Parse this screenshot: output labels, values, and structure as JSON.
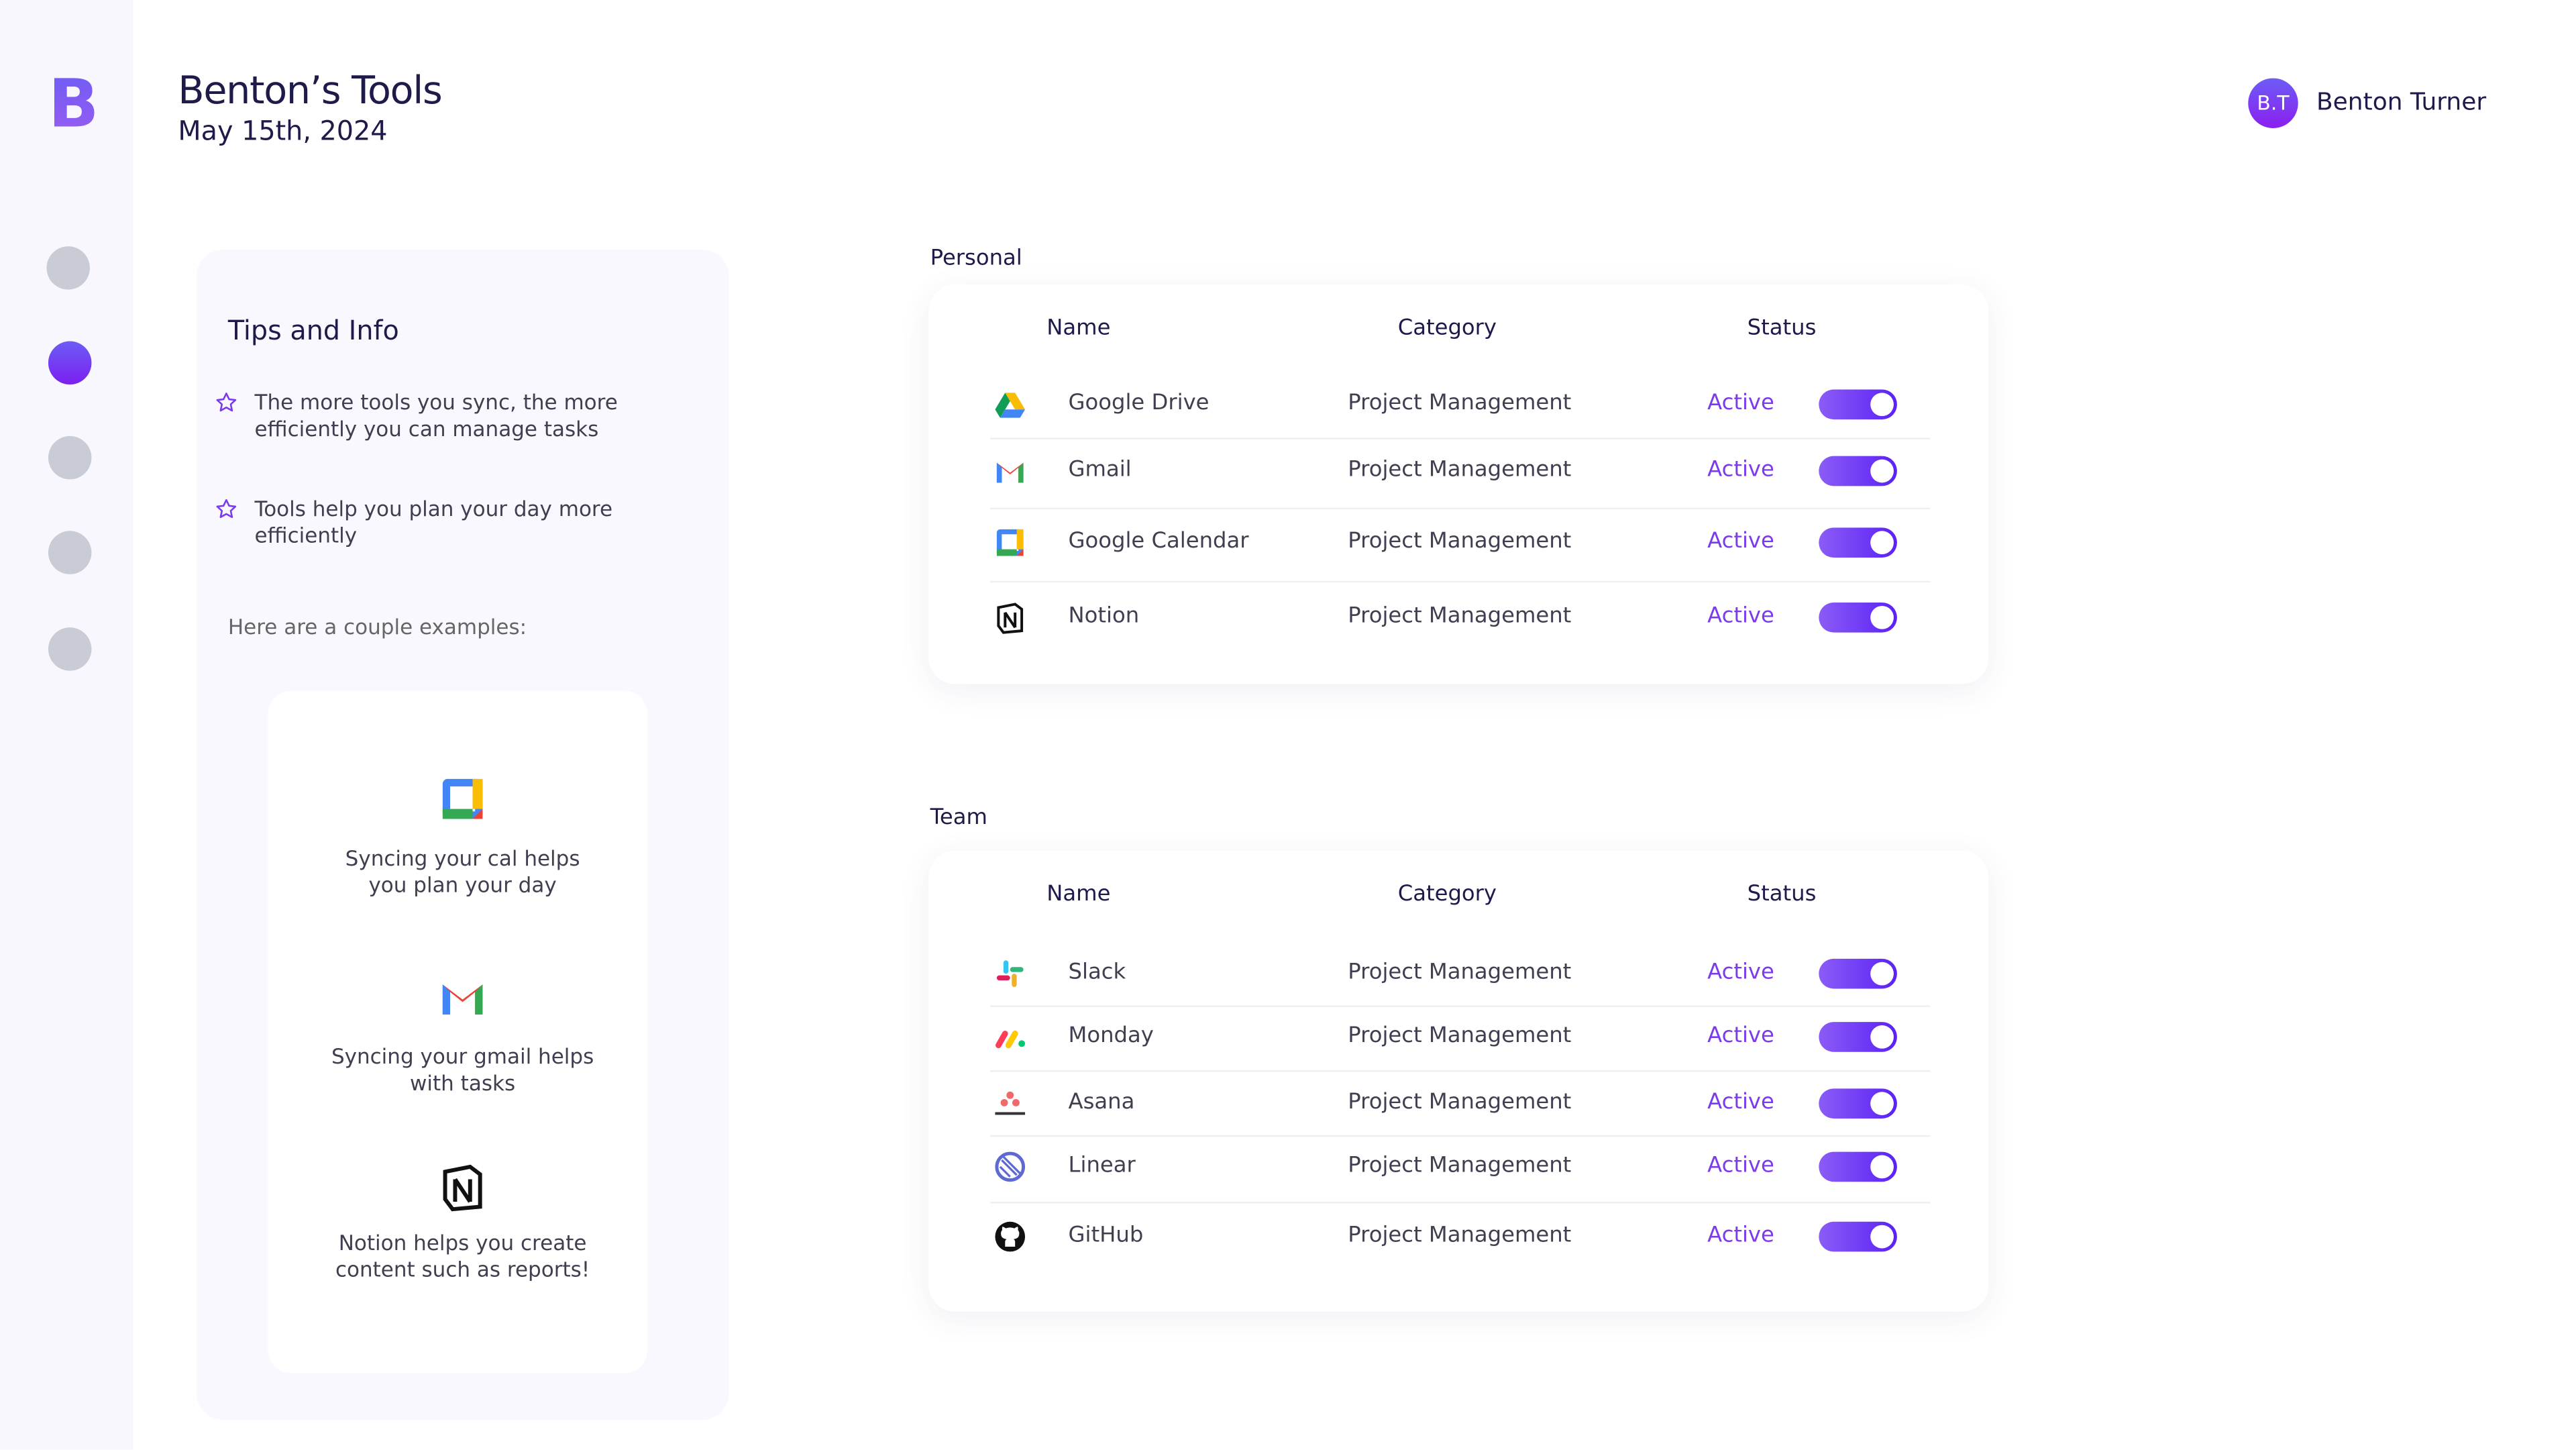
{
  "header": {
    "logo": "B",
    "title": "Benton’s Tools",
    "date": "May 15th, 2024"
  },
  "user": {
    "initials": "B.T",
    "name": "Benton Turner"
  },
  "tips": {
    "title": "Tips and Info",
    "items": [
      "The more tools you sync, the more efficiently you can manage tasks",
      "Tools help you plan your day more efficiently"
    ],
    "examples_intro": "Here are a couple examples:",
    "examples": [
      "Syncing your cal helps you plan your day",
      "Syncing your gmail helps with tasks",
      "Notion helps you create content such as reports!"
    ]
  },
  "sections": [
    {
      "title": "Personal",
      "headers": [
        "Name",
        "Category",
        "Status"
      ],
      "rows": [
        {
          "name": "Google Drive",
          "category": "Project Management",
          "status": "Active"
        },
        {
          "name": "Gmail",
          "category": "Project Management",
          "status": "Active"
        },
        {
          "name": "Google Calendar",
          "category": "Project Management",
          "status": "Active"
        },
        {
          "name": "Notion",
          "category": "Project Management",
          "status": "Active"
        }
      ]
    },
    {
      "title": "Team",
      "headers": [
        "Name",
        "Category",
        "Status"
      ],
      "rows": [
        {
          "name": "Slack",
          "category": "Project Management",
          "status": "Active"
        },
        {
          "name": "Monday",
          "category": "Project Management",
          "status": "Active"
        },
        {
          "name": "Asana",
          "category": "Project Management",
          "status": "Active"
        },
        {
          "name": "Linear",
          "category": "Project Management",
          "status": "Active"
        },
        {
          "name": "GitHub",
          "category": "Project Management",
          "status": "Active"
        }
      ]
    }
  ]
}
